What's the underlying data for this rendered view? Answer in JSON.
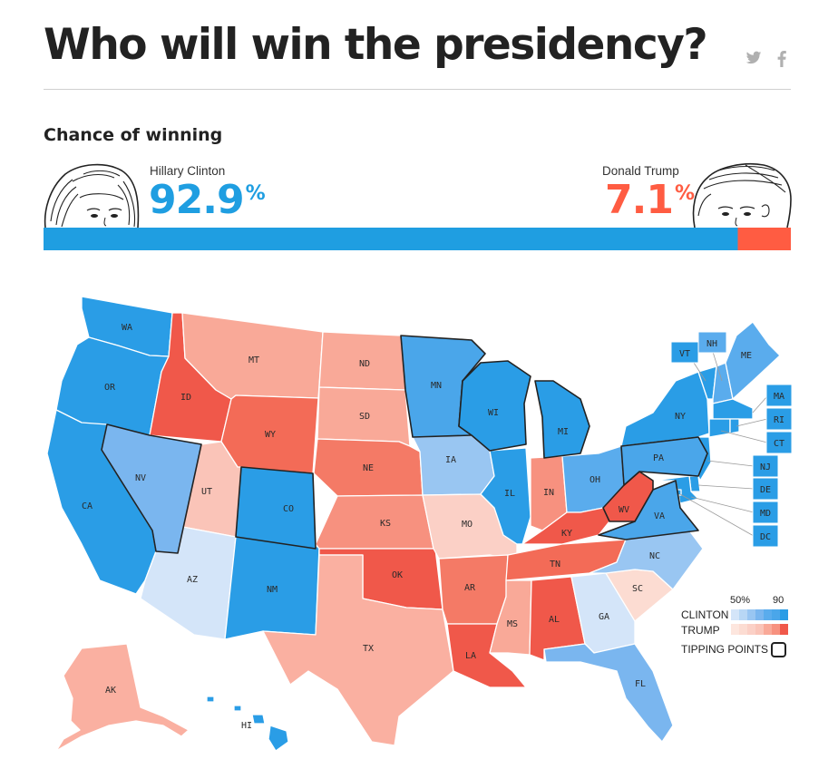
{
  "header": {
    "title": "Who will win the presidency?"
  },
  "share": {
    "twitter": "twitter-icon",
    "facebook": "facebook-icon"
  },
  "odds": {
    "subtitle": "Chance of winning",
    "clinton": {
      "name": "Hillary Clinton",
      "value": "92.9",
      "percent": 92.9,
      "color": "#1f9ee1"
    },
    "trump": {
      "name": "Donald Trump",
      "value": "7.1",
      "percent": 7.1,
      "color": "#ff5c42"
    },
    "pct_sign": "%"
  },
  "map": {
    "states": [
      {
        "code": "WA",
        "color": "#2a9de6"
      },
      {
        "code": "OR",
        "color": "#2a9de6"
      },
      {
        "code": "CA",
        "color": "#2a9de6"
      },
      {
        "code": "ID",
        "color": "#f0584a"
      },
      {
        "code": "NV",
        "color": "#7ab6ef",
        "tipping": true
      },
      {
        "code": "MT",
        "color": "#f9a998"
      },
      {
        "code": "WY",
        "color": "#f36b57"
      },
      {
        "code": "UT",
        "color": "#fac4b8"
      },
      {
        "code": "AZ",
        "color": "#d4e5f9"
      },
      {
        "code": "CO",
        "color": "#2a9de6",
        "tipping": true
      },
      {
        "code": "NM",
        "color": "#2a9de6"
      },
      {
        "code": "ND",
        "color": "#f9a998"
      },
      {
        "code": "SD",
        "color": "#f9a998"
      },
      {
        "code": "NE",
        "color": "#f47a66"
      },
      {
        "code": "KS",
        "color": "#f7917f"
      },
      {
        "code": "OK",
        "color": "#f0584a"
      },
      {
        "code": "TX",
        "color": "#fab0a1"
      },
      {
        "code": "MN",
        "color": "#4aa6ea",
        "tipping": true
      },
      {
        "code": "IA",
        "color": "#99c6f2"
      },
      {
        "code": "MO",
        "color": "#fbd0c6"
      },
      {
        "code": "AR",
        "color": "#f47a66"
      },
      {
        "code": "LA",
        "color": "#f0584a"
      },
      {
        "code": "WI",
        "color": "#2a9de6",
        "tipping": true
      },
      {
        "code": "IL",
        "color": "#2a9de6"
      },
      {
        "code": "MI",
        "color": "#2a9de6",
        "tipping": true
      },
      {
        "code": "IN",
        "color": "#f7917f"
      },
      {
        "code": "OH",
        "color": "#5aaced"
      },
      {
        "code": "KY",
        "color": "#f0584a"
      },
      {
        "code": "TN",
        "color": "#f36b57"
      },
      {
        "code": "MS",
        "color": "#f9a998"
      },
      {
        "code": "AL",
        "color": "#f0584a"
      },
      {
        "code": "GA",
        "color": "#d4e5f9"
      },
      {
        "code": "FL",
        "color": "#7ab6ef"
      },
      {
        "code": "SC",
        "color": "#fcdcd2"
      },
      {
        "code": "NC",
        "color": "#99c6f2"
      },
      {
        "code": "VA",
        "color": "#4aa6ea",
        "tipping": true
      },
      {
        "code": "WV",
        "color": "#f0584a",
        "tipping": true
      },
      {
        "code": "PA",
        "color": "#4aa6ea",
        "tipping": true
      },
      {
        "code": "NY",
        "color": "#2a9de6"
      },
      {
        "code": "VT",
        "color": "#2a9de6"
      },
      {
        "code": "NH",
        "color": "#5aaced"
      },
      {
        "code": "ME",
        "color": "#5aaced"
      },
      {
        "code": "MA",
        "color": "#2a9de6"
      },
      {
        "code": "RI",
        "color": "#2a9de6"
      },
      {
        "code": "CT",
        "color": "#2a9de6"
      },
      {
        "code": "NJ",
        "color": "#2a9de6"
      },
      {
        "code": "DE",
        "color": "#2a9de6"
      },
      {
        "code": "MD",
        "color": "#2a9de6"
      },
      {
        "code": "DC",
        "color": "#2a9de6"
      },
      {
        "code": "AK",
        "color": "#fab0a1"
      },
      {
        "code": "HI",
        "color": "#2a9de6"
      }
    ]
  },
  "legend": {
    "low": "50%",
    "high": "90",
    "clinton_label": "CLINTON",
    "trump_label": "TRUMP",
    "tipping_label": "TIPPING POINTS",
    "clinton_scale": [
      "#d4e5f9",
      "#b8d7f5",
      "#99c6f2",
      "#7ab6ef",
      "#5aaced",
      "#4aa6ea",
      "#2a9de6"
    ],
    "trump_scale": [
      "#fde6de",
      "#fcdcd2",
      "#fbd0c6",
      "#fac4b8",
      "#f9a998",
      "#f7917f",
      "#f0584a"
    ]
  }
}
